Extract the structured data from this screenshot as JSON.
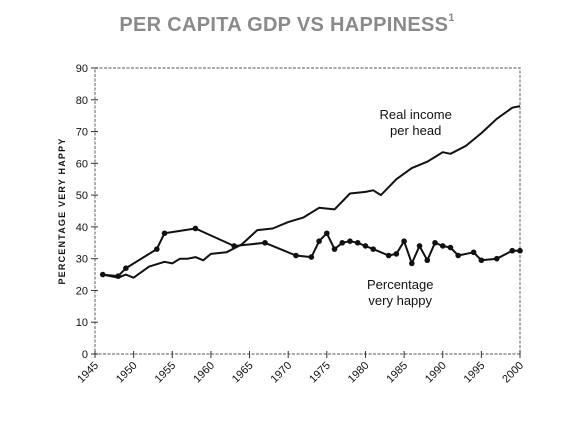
{
  "header": {
    "title": "PER CAPITA GDP VS HAPPINESS",
    "footnote": "1"
  },
  "chart_data": {
    "type": "line",
    "title": "PER CAPITA GDP VS HAPPINESS",
    "xlabel": "",
    "ylabel": "PERCENTAGE VERY HAPPY",
    "xlim": [
      1945,
      2000
    ],
    "ylim": [
      0,
      90
    ],
    "xticks": [
      1945,
      1950,
      1955,
      1960,
      1965,
      1970,
      1975,
      1980,
      1985,
      1990,
      1995,
      2000
    ],
    "yticks": [
      0,
      10,
      20,
      30,
      40,
      50,
      60,
      70,
      80,
      90
    ],
    "series": [
      {
        "name": "Real income per head",
        "label_lines": [
          "Real income",
          "per head"
        ],
        "color": "#111111",
        "markers": false,
        "x": [
          1946,
          1948,
          1949,
          1950,
          1952,
          1954,
          1955,
          1956,
          1957,
          1958,
          1959,
          1960,
          1962,
          1964,
          1966,
          1968,
          1970,
          1972,
          1974,
          1976,
          1978,
          1980,
          1981,
          1982,
          1984,
          1986,
          1988,
          1989,
          1990,
          1991,
          1993,
          1995,
          1997,
          1999,
          2000
        ],
        "y": [
          25,
          24,
          25,
          24,
          27.5,
          29,
          28.5,
          30,
          30,
          30.5,
          29.5,
          31.5,
          32,
          34.5,
          39,
          39.5,
          41.5,
          43,
          46,
          45.5,
          50.5,
          51,
          51.5,
          50,
          55,
          58.5,
          60.5,
          62,
          63.5,
          63,
          65.5,
          69.5,
          74,
          77.5,
          78
        ]
      },
      {
        "name": "Percentage very happy",
        "label_lines": [
          "Percentage",
          "very happy"
        ],
        "color": "#111111",
        "markers": true,
        "x": [
          1946,
          1948,
          1949,
          1953,
          1954,
          1958,
          1963,
          1967,
          1971,
          1973,
          1974,
          1975,
          1976,
          1977,
          1978,
          1979,
          1980,
          1981,
          1983,
          1984,
          1985,
          1986,
          1987,
          1988,
          1989,
          1990,
          1991,
          1992,
          1994,
          1995,
          1997,
          1999,
          2000
        ],
        "y": [
          25,
          24.5,
          27,
          33,
          38,
          39.5,
          34,
          35,
          31,
          30.5,
          35.5,
          38,
          33,
          35,
          35.5,
          35,
          34,
          33,
          31,
          31.5,
          35.5,
          28.5,
          34,
          29.5,
          35,
          34,
          33.5,
          31,
          32,
          29.5,
          30,
          32.5,
          32.5
        ]
      }
    ],
    "annotations": [
      {
        "text": "Real income",
        "series": 0
      },
      {
        "text": "per head",
        "series": 0
      },
      {
        "text": "Percentage",
        "series": 1
      },
      {
        "text": "very happy",
        "series": 1
      }
    ],
    "grid": false,
    "legend": "none"
  }
}
